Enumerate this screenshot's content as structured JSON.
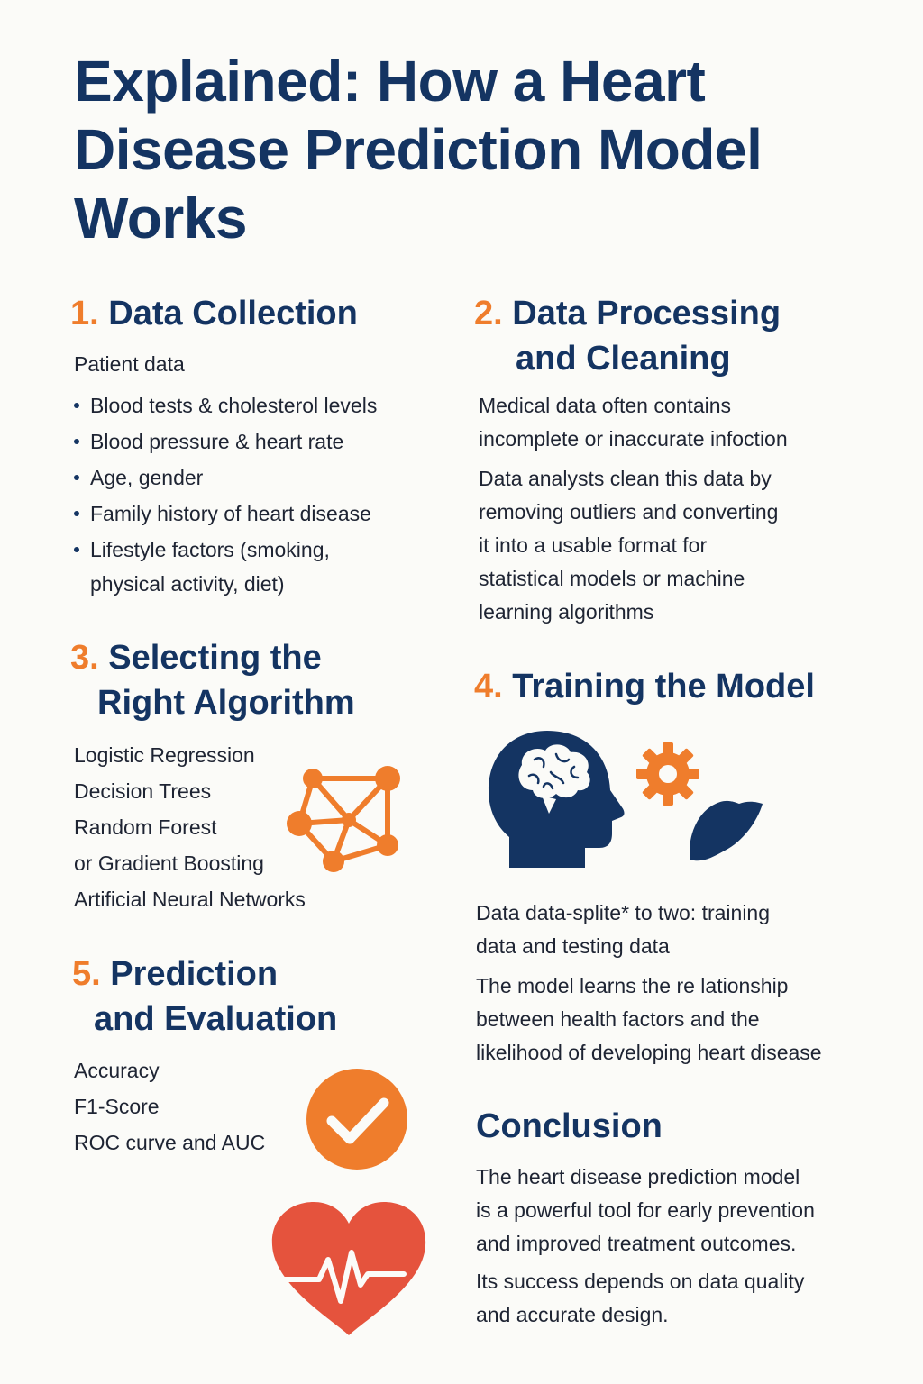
{
  "title": "Explained: How a Heart Disease Prediction Model Works",
  "sections": {
    "s1": {
      "num": "1.",
      "heading": "Data Collection",
      "intro": "Patient data",
      "bullets": [
        "Blood tests & cholesterol levels",
        "Blood pressure & heart rate",
        "Age, gender",
        "Family history of heart disease",
        "Lifestyle factors (smoking,"
      ],
      "bullet_cont": "physical activity, diet)"
    },
    "s2": {
      "num": "2.",
      "heading_l1": "Data Processing",
      "heading_l2": "and Cleaning",
      "p1_l1": "Medical data often contains",
      "p1_l2": "incomplete or inaccurate infoction",
      "p2_l1": "Data analysts clean this data by",
      "p2_l2": "removing outliers and converting",
      "p2_l3": "it into a usable format for",
      "p2_l4": "statistical models or machine",
      "p2_l5": "learning algorithms"
    },
    "s3": {
      "num": "3.",
      "heading_l1": "Selecting the",
      "heading_l2": "Right Algorithm",
      "items": [
        "Logistic Regression",
        "Decision Trees",
        "Random Forest",
        "or Gradient Boosting",
        "Artificial Neural Networks"
      ]
    },
    "s4": {
      "num": "4.",
      "heading": "Training the Model",
      "p1_l1": "Data data-splite* to two: training",
      "p1_l2": "data and testing data",
      "p2_l1": "The model learns the re lationship",
      "p2_l2": "between health factors and the",
      "p2_l3": "likelihood of developing heart disease"
    },
    "s5": {
      "num": "5.",
      "heading_l1": "Prediction",
      "heading_l2": "and Evaluation",
      "items": [
        "Accuracy",
        "F1-Score",
        "ROC curve and AUC"
      ]
    },
    "conclusion": {
      "heading": "Conclusion",
      "p1_l1": "The heart disease prediction model",
      "p1_l2": "is a powerful tool for early prevention",
      "p1_l3": "and improved treatment outcomes.",
      "p2_l1": "Its success depends on data quality",
      "p2_l2": "and accurate design."
    }
  },
  "icons": {
    "network": "network-graph-icon",
    "head": "brain-head-icon",
    "gear": "gear-icon",
    "organ": "organ-shape-icon",
    "check": "checkmark-circle-icon",
    "heart": "heartbeat-icon"
  },
  "colors": {
    "navy": "#143462",
    "orange": "#ef7d2c",
    "red": "#e5533d",
    "background": "#fbfbf8"
  }
}
